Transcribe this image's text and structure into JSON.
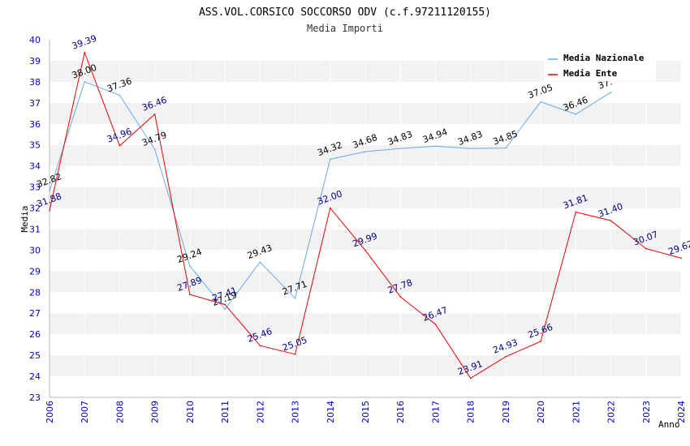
{
  "chart_data": {
    "type": "line",
    "title": "ASS.VOL.CORSICO SOCCORSO ODV (c.f.97211120155)",
    "subtitle": "Media Importi",
    "xlabel": "Anno",
    "ylabel": "Media",
    "ylim": [
      23,
      40
    ],
    "yticks": [
      23,
      24,
      25,
      26,
      27,
      28,
      29,
      30,
      31,
      32,
      33,
      34,
      35,
      36,
      37,
      38,
      39,
      40
    ],
    "categories": [
      "2006",
      "2007",
      "2008",
      "2009",
      "2010",
      "2011",
      "2012",
      "2013",
      "2014",
      "2015",
      "2016",
      "2017",
      "2018",
      "2019",
      "2020",
      "2021",
      "2022",
      "2023",
      "2024"
    ],
    "legend_position": "top-right",
    "series": [
      {
        "name": "Media Nazionale",
        "color": "#66aaee",
        "label_color": "#000000",
        "values": [
          32.82,
          38.0,
          37.36,
          34.79,
          29.24,
          27.19,
          29.43,
          27.71,
          34.32,
          34.68,
          34.83,
          34.94,
          34.83,
          34.85,
          37.05,
          36.46,
          37.5,
          null,
          null
        ],
        "labels": [
          "32.82",
          "38.00",
          "37.36",
          "34.79",
          "29.24",
          "27.19",
          "29.43",
          "27.71",
          "34.32",
          "34.68",
          "34.83",
          "34.94",
          "34.83",
          "34.85",
          "37.05",
          "36.46",
          "37.",
          "",
          ""
        ]
      },
      {
        "name": "Media Ente",
        "color": "#ee0000",
        "label_color": "#000080",
        "values": [
          31.88,
          39.39,
          34.96,
          36.46,
          27.89,
          27.41,
          25.46,
          25.05,
          32.0,
          29.99,
          27.78,
          26.47,
          23.91,
          24.93,
          25.66,
          31.81,
          31.4,
          30.07,
          29.62
        ],
        "labels": [
          "31.88",
          "39.39",
          "34.96",
          "36.46",
          "27.89",
          "27.41",
          "25.46",
          "25.05",
          "32.00",
          "29.99",
          "27.78",
          "26.47",
          "23.91",
          "24.93",
          "25.66",
          "31.81",
          "31.40",
          "30.07",
          "29.62"
        ]
      }
    ]
  }
}
